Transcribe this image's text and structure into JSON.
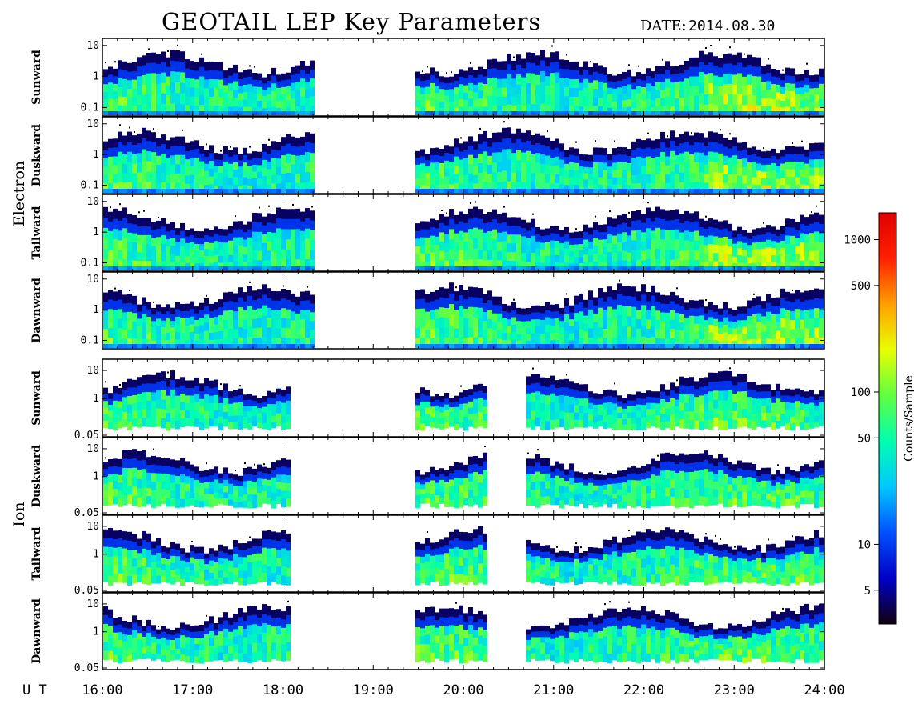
{
  "header": {
    "title": "GEOTAIL LEP Key Parameters",
    "date_label": "DATE:",
    "date_value": "2014.08.30"
  },
  "chart_data": {
    "type": "heatmap",
    "x_axis": {
      "label": "U T",
      "range": [
        "16:00",
        "24:00"
      ],
      "ticks": [
        "16:00",
        "17:00",
        "18:00",
        "19:00",
        "20:00",
        "21:00",
        "22:00",
        "23:00",
        "24:00"
      ]
    },
    "groups": [
      {
        "name": "Electron",
        "y_ticks": [
          "10",
          "1",
          "0.1"
        ],
        "y_tick_values": [
          10,
          1,
          0.1
        ],
        "y_range": [
          0.06,
          15
        ],
        "panels": [
          "Sunward",
          "Duskward",
          "Tailward",
          "Dawnward"
        ],
        "data_gaps_ut": [
          [
            "18:20",
            "19:25"
          ]
        ]
      },
      {
        "name": "Ion",
        "y_ticks": [
          "10",
          "1",
          "0.05"
        ],
        "y_tick_values": [
          10,
          1,
          0.05
        ],
        "y_range": [
          0.05,
          22
        ],
        "panels": [
          "Sunward",
          "Duskward",
          "Tailward",
          "Dawnward"
        ],
        "data_gaps_ut": [
          [
            "18:05",
            "19:25"
          ],
          [
            "20:15",
            "20:40"
          ]
        ]
      }
    ],
    "colorbar": {
      "label": "Counts/Sample",
      "ticks": [
        "1000",
        "500",
        "100",
        "50",
        "10",
        "5"
      ],
      "tick_values": [
        1000,
        500,
        100,
        50,
        10,
        5
      ],
      "range": [
        3,
        1500
      ],
      "scale": "log",
      "colormap": [
        "#100010",
        "#0000c8",
        "#0050ff",
        "#00c8ff",
        "#00ffb0",
        "#60ff40",
        "#e8ff00",
        "#ffa000",
        "#ff2000",
        "#e00000"
      ]
    }
  }
}
